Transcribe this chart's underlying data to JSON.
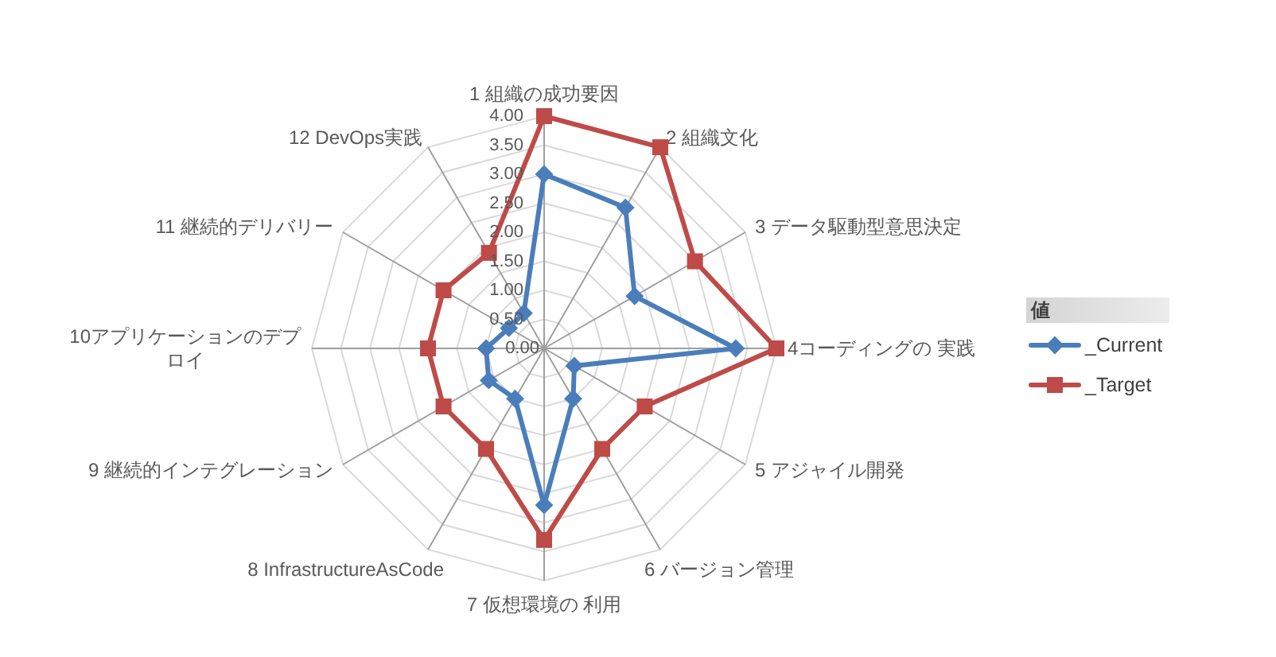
{
  "chart_data": {
    "type": "radar",
    "categories": [
      "1 組織の成功要因",
      "2 組織文化",
      "3 データ駆動型意思決定",
      "4コーディングの 実践",
      "5 アジャイル開発",
      "6 バージョン管理",
      "7 仮想環境の 利用",
      "8 InfrastructureAsCode",
      "9 継続的インテグレーション",
      "10アプリケーションのデプロイ",
      "11 継続的デリバリー",
      "12 DevOps実践"
    ],
    "series": [
      {
        "name": "_Current",
        "color": "#4a7ebb",
        "marker": "diamond",
        "values": [
          3.0,
          2.8,
          1.8,
          3.3,
          0.6,
          1.0,
          2.7,
          1.0,
          1.1,
          1.0,
          0.7,
          0.7
        ]
      },
      {
        "name": "_Target",
        "color": "#be4b48",
        "marker": "square",
        "values": [
          4.0,
          4.0,
          3.0,
          4.0,
          2.0,
          2.0,
          3.3,
          2.0,
          2.0,
          2.0,
          2.0,
          1.9
        ]
      }
    ],
    "ylim": [
      0,
      4
    ],
    "yticks": [
      {
        "value": 0,
        "label": "0.00"
      },
      {
        "value": 0.5,
        "label": "0.50"
      },
      {
        "value": 1,
        "label": "1.00"
      },
      {
        "value": 1.5,
        "label": "1.50"
      },
      {
        "value": 2,
        "label": "2.00"
      },
      {
        "value": 2.5,
        "label": "2.50"
      },
      {
        "value": 3,
        "label": "3.00"
      },
      {
        "value": 3.5,
        "label": "3.50"
      },
      {
        "value": 4,
        "label": "4.00"
      }
    ],
    "legend_title": "値",
    "legend": "right",
    "grid": true,
    "line_style": "solid"
  }
}
